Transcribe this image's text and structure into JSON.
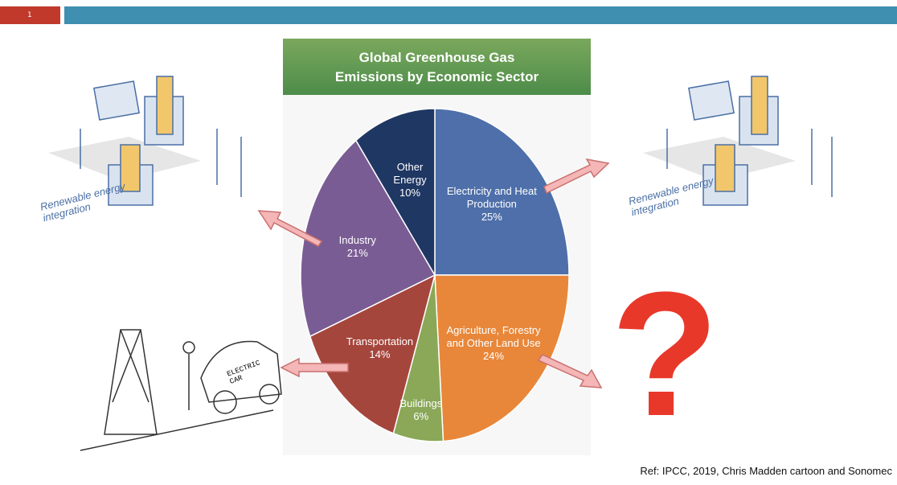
{
  "slide_number": "1",
  "chart_data": {
    "type": "pie",
    "title": "Global Greenhouse Gas Emissions by Economic Sector",
    "categories": [
      "Electricity and Heat Production",
      "Agriculture, Forestry and Other Land Use",
      "Buildings",
      "Transportation",
      "Industry",
      "Other Energy"
    ],
    "values": [
      25,
      24,
      6,
      14,
      21,
      10
    ],
    "value_labels": [
      "25%",
      "24%",
      "6%",
      "14%",
      "21%",
      "10%"
    ],
    "colors": [
      "#4e6fa9",
      "#e8873a",
      "#8aa857",
      "#a5463c",
      "#7a5c94",
      "#1f3763"
    ]
  },
  "illustrations": {
    "left_caption": "Renewable energy integration",
    "right_caption": "Renewable energy integration",
    "cartoon_text": "ELECTRIC CAR",
    "question": "?"
  },
  "reference": "Ref: IPCC, 2019, Chris Madden cartoon and Sonomec"
}
